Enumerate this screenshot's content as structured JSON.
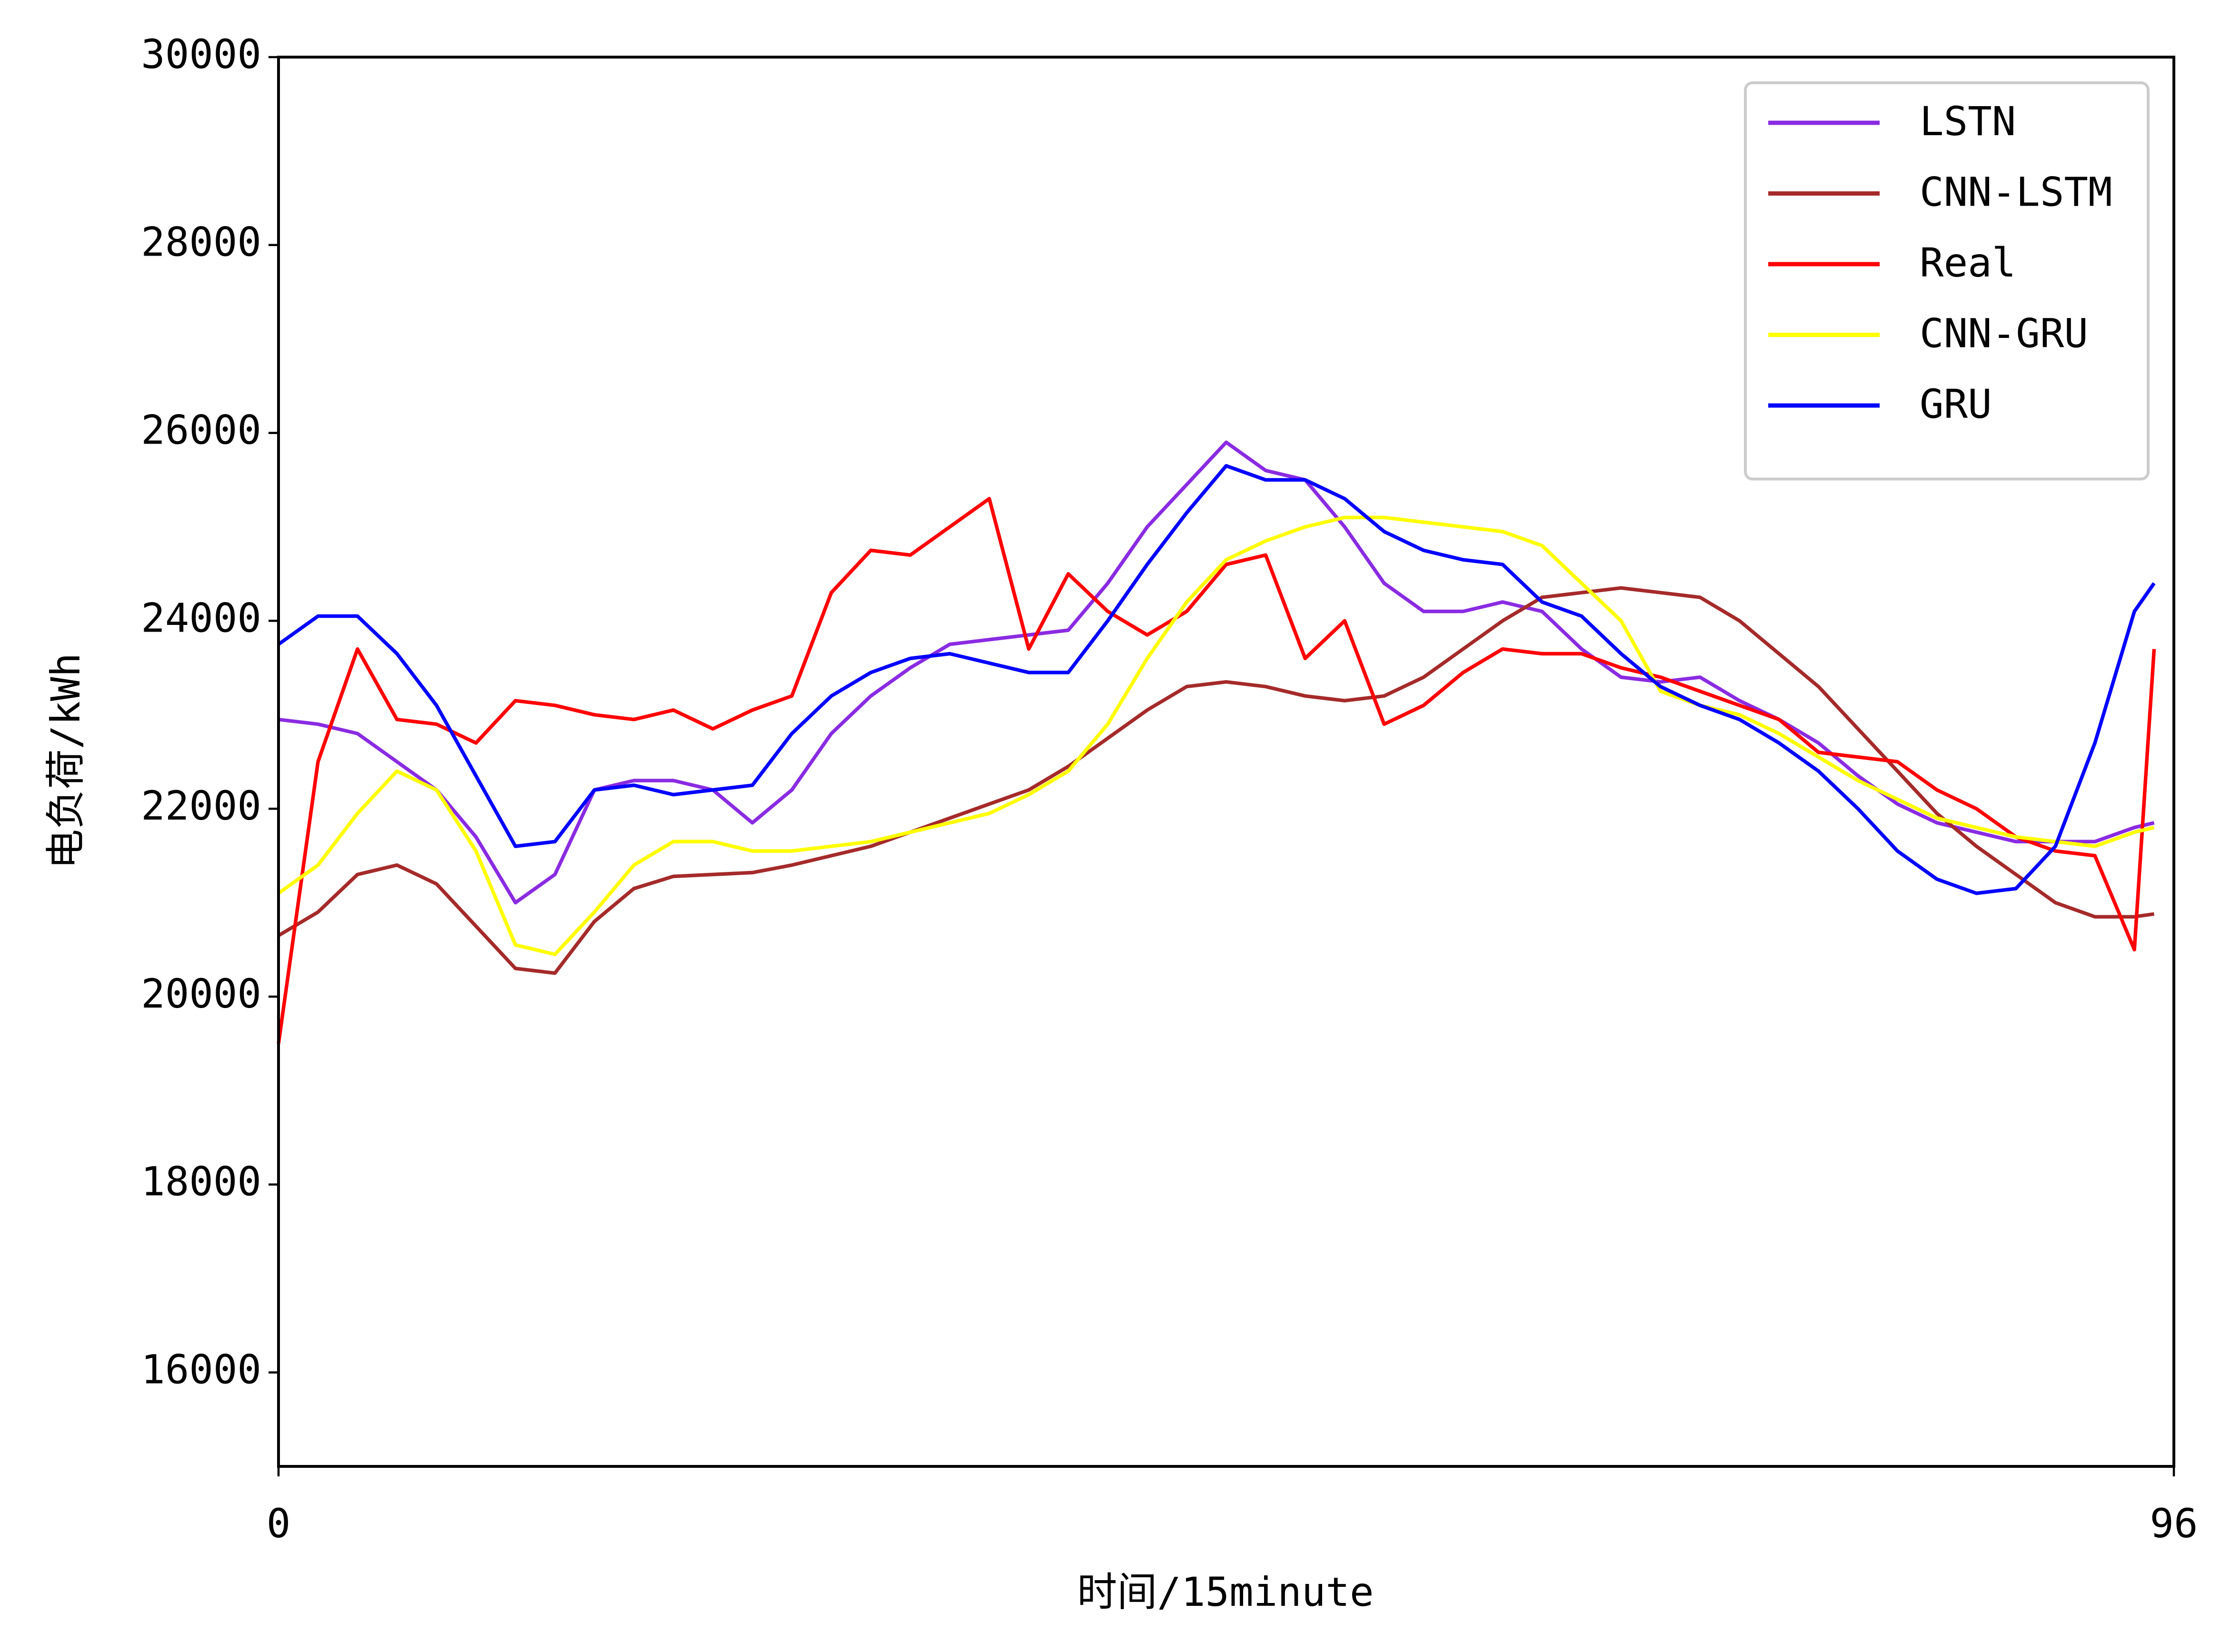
{
  "chart_data": {
    "type": "line",
    "xlabel": "时间/15minute",
    "ylabel": "电负荷/kWh",
    "x": [
      0,
      2,
      4,
      6,
      8,
      10,
      12,
      14,
      16,
      18,
      20,
      22,
      24,
      26,
      28,
      30,
      32,
      34,
      36,
      38,
      40,
      42,
      44,
      46,
      48,
      50,
      52,
      54,
      56,
      58,
      60,
      62,
      64,
      66,
      68,
      70,
      72,
      74,
      76,
      78,
      80,
      82,
      84,
      86,
      88,
      90,
      92,
      94,
      95
    ],
    "xlim": [
      0,
      96
    ],
    "xticks": [
      0,
      96
    ],
    "ylim": [
      15000,
      30000
    ],
    "yticks": [
      16000,
      18000,
      20000,
      22000,
      24000,
      26000,
      28000,
      30000
    ],
    "legend": "upper right",
    "series": [
      {
        "name": "LSTN",
        "color": "#8a2be2",
        "values": [
          22950,
          22900,
          22800,
          22500,
          22200,
          21700,
          21000,
          21300,
          22200,
          22300,
          22300,
          22200,
          21850,
          22200,
          22800,
          23200,
          23500,
          23750,
          23800,
          23850,
          23900,
          24400,
          25000,
          25450,
          25900,
          25600,
          25500,
          25000,
          24400,
          24100,
          24100,
          24200,
          24100,
          23700,
          23400,
          23350,
          23400,
          23150,
          22950,
          22700,
          22350,
          22050,
          21850,
          21750,
          21650,
          21650,
          21650,
          21800,
          21850
        ]
      },
      {
        "name": "CNN-LSTM",
        "color": "#a52a2a",
        "values": [
          20650,
          20900,
          21300,
          21400,
          21200,
          20750,
          20300,
          20250,
          20800,
          21150,
          21280,
          21300,
          21320,
          21400,
          21500,
          21600,
          21750,
          21900,
          22050,
          22200,
          22450,
          22750,
          23050,
          23300,
          23350,
          23300,
          23200,
          23150,
          23200,
          23400,
          23700,
          24000,
          24250,
          24300,
          24350,
          24300,
          24250,
          24000,
          23650,
          23300,
          22850,
          22400,
          21950,
          21600,
          21300,
          21000,
          20850,
          20850,
          20880
        ]
      },
      {
        "name": "Real",
        "color": "#ff0000",
        "values": [
          19500,
          22500,
          23700,
          22950,
          22900,
          22700,
          23150,
          23100,
          23000,
          22950,
          23050,
          22850,
          23050,
          23200,
          24300,
          24750,
          24700,
          25000,
          25300,
          23700,
          24500,
          24100,
          23850,
          24100,
          24600,
          24700,
          23600,
          24000,
          22900,
          23100,
          23450,
          23700,
          23650,
          23650,
          23500,
          23400,
          23250,
          23100,
          22950,
          22600,
          22550,
          22500,
          22200,
          22000,
          21700,
          21550,
          21500,
          20500,
          23700
        ]
      },
      {
        "name": "CNN-GRU",
        "color": "#ffff00",
        "values": [
          21100,
          21400,
          21950,
          22400,
          22200,
          21550,
          20550,
          20450,
          20900,
          21400,
          21650,
          21650,
          21550,
          21550,
          21600,
          21650,
          21750,
          21850,
          21950,
          22150,
          22400,
          22900,
          23600,
          24200,
          24650,
          24850,
          25000,
          25100,
          25100,
          25050,
          25000,
          24950,
          24800,
          24400,
          24000,
          23250,
          23100,
          23000,
          22800,
          22550,
          22300,
          22100,
          21900,
          21800,
          21700,
          21650,
          21600,
          21750,
          21800
        ]
      },
      {
        "name": "GRU",
        "color": "#0000ff",
        "values": [
          23750,
          24050,
          24050,
          23650,
          23100,
          22350,
          21600,
          21650,
          22200,
          22250,
          22150,
          22200,
          22250,
          22800,
          23200,
          23450,
          23600,
          23650,
          23550,
          23450,
          23450,
          24000,
          24600,
          25150,
          25650,
          25500,
          25500,
          25300,
          24950,
          24750,
          24650,
          24600,
          24200,
          24050,
          23650,
          23300,
          23100,
          22950,
          22700,
          22400,
          22000,
          21550,
          21250,
          21100,
          21150,
          21600,
          22700,
          24100,
          24400
        ]
      }
    ]
  }
}
